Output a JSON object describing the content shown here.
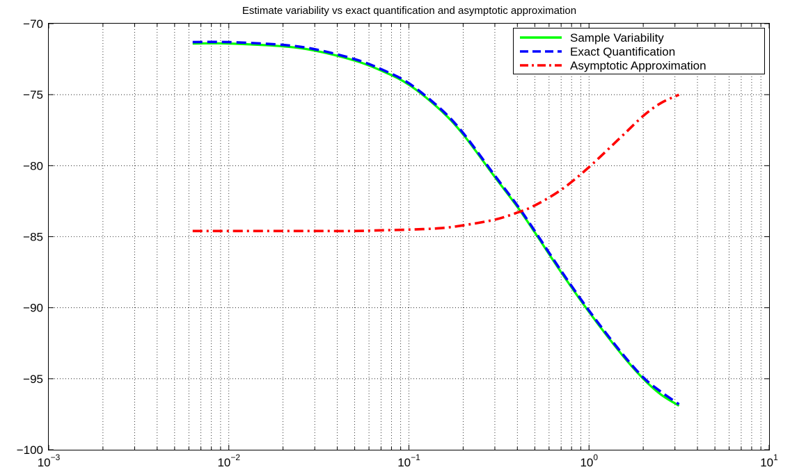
{
  "chart_data": {
    "type": "line",
    "title": "Estimate variability vs exact quantification and asymptotic approximation",
    "xlabel": "",
    "ylabel": "",
    "x_scale": "log",
    "xlim": [
      0.001,
      10
    ],
    "ylim": [
      -100,
      -70
    ],
    "grid": true,
    "legend_position": "top-right",
    "x_ticks": [
      {
        "value": 0.001,
        "base": "10",
        "exp": "−3"
      },
      {
        "value": 0.01,
        "base": "10",
        "exp": "−2"
      },
      {
        "value": 0.1,
        "base": "10",
        "exp": "−1"
      },
      {
        "value": 1,
        "base": "10",
        "exp": "0"
      },
      {
        "value": 10,
        "base": "10",
        "exp": "1"
      }
    ],
    "y_ticks": [
      {
        "value": -70,
        "label": "−70"
      },
      {
        "value": -75,
        "label": "−75"
      },
      {
        "value": -80,
        "label": "−80"
      },
      {
        "value": -85,
        "label": "−85"
      },
      {
        "value": -90,
        "label": "−90"
      },
      {
        "value": -95,
        "label": "−95"
      },
      {
        "value": -100,
        "label": "−100"
      }
    ],
    "x": [
      0.0063,
      0.01,
      0.02,
      0.03,
      0.05,
      0.07,
      0.1,
      0.15,
      0.2,
      0.3,
      0.4,
      0.5,
      0.7,
      1.0,
      1.5,
      2.0,
      2.5,
      3.16
    ],
    "series": [
      {
        "name": "Sample Variability",
        "color": "#00ff00",
        "style": "solid",
        "values": [
          -71.4,
          -71.4,
          -71.6,
          -71.9,
          -72.6,
          -73.3,
          -74.3,
          -76.1,
          -77.8,
          -80.8,
          -82.9,
          -84.7,
          -87.5,
          -90.3,
          -93.2,
          -95.0,
          -96.1,
          -96.9
        ]
      },
      {
        "name": "Exact Quantification",
        "color": "#0000ff",
        "style": "dashed",
        "values": [
          -71.3,
          -71.3,
          -71.5,
          -71.8,
          -72.5,
          -73.2,
          -74.2,
          -76.0,
          -77.7,
          -80.7,
          -82.8,
          -84.6,
          -87.4,
          -90.2,
          -93.1,
          -94.9,
          -95.9,
          -96.8
        ]
      },
      {
        "name": "Asymptotic Approximation",
        "color": "#ff0000",
        "style": "dashdot",
        "values": [
          -84.6,
          -84.6,
          -84.6,
          -84.6,
          -84.6,
          -84.55,
          -84.5,
          -84.4,
          -84.2,
          -83.8,
          -83.3,
          -82.8,
          -81.7,
          -80.1,
          -78.0,
          -76.5,
          -75.6,
          -75.0
        ]
      }
    ]
  }
}
